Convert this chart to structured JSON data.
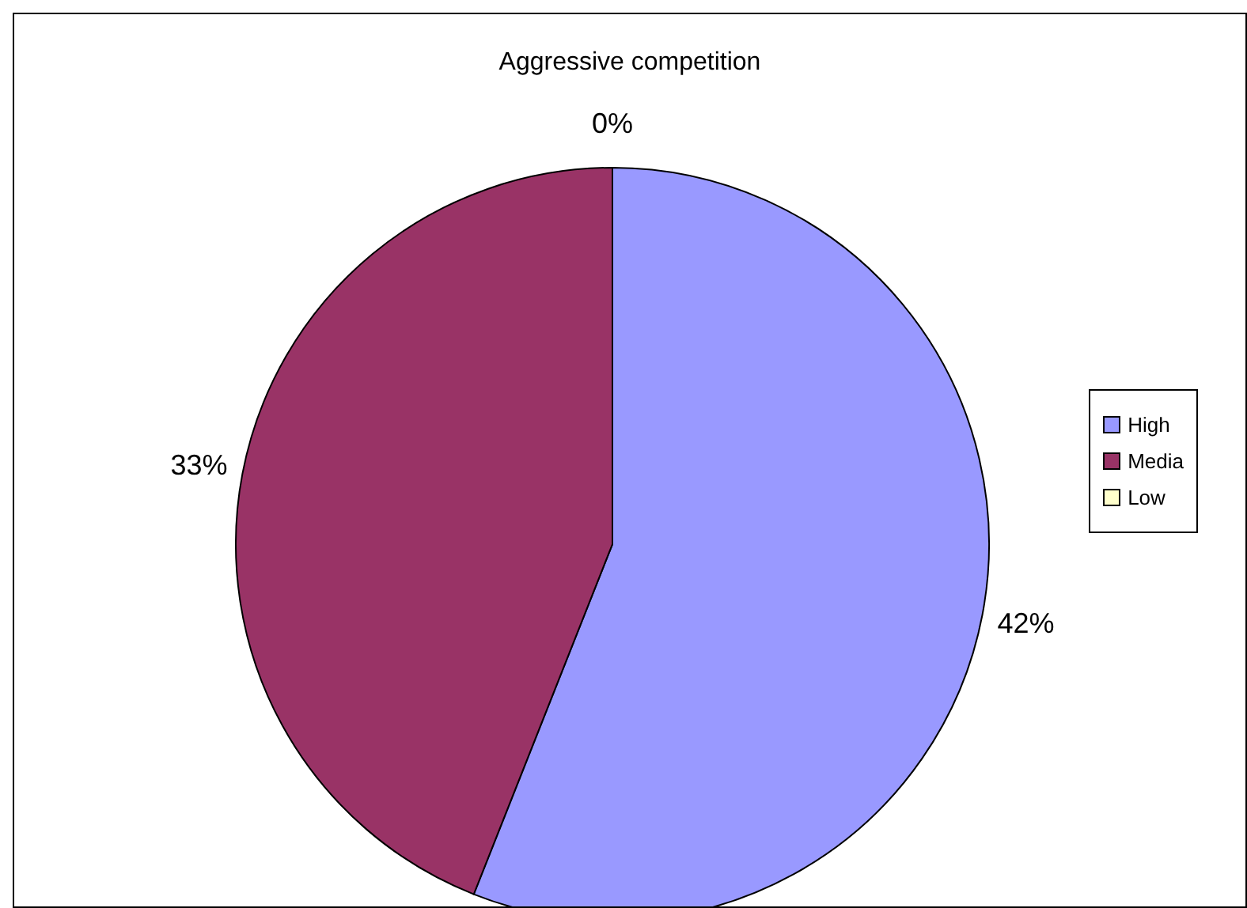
{
  "chart_data": {
    "type": "pie",
    "title": "Aggressive competition",
    "categories": [
      "High",
      "Media",
      "Low"
    ],
    "values": [
      42,
      33,
      0
    ],
    "colors": [
      "#9999ff",
      "#993366",
      "#ffffcc"
    ],
    "value_labels": [
      "42%",
      "33%",
      "0%"
    ],
    "legend": "right"
  }
}
